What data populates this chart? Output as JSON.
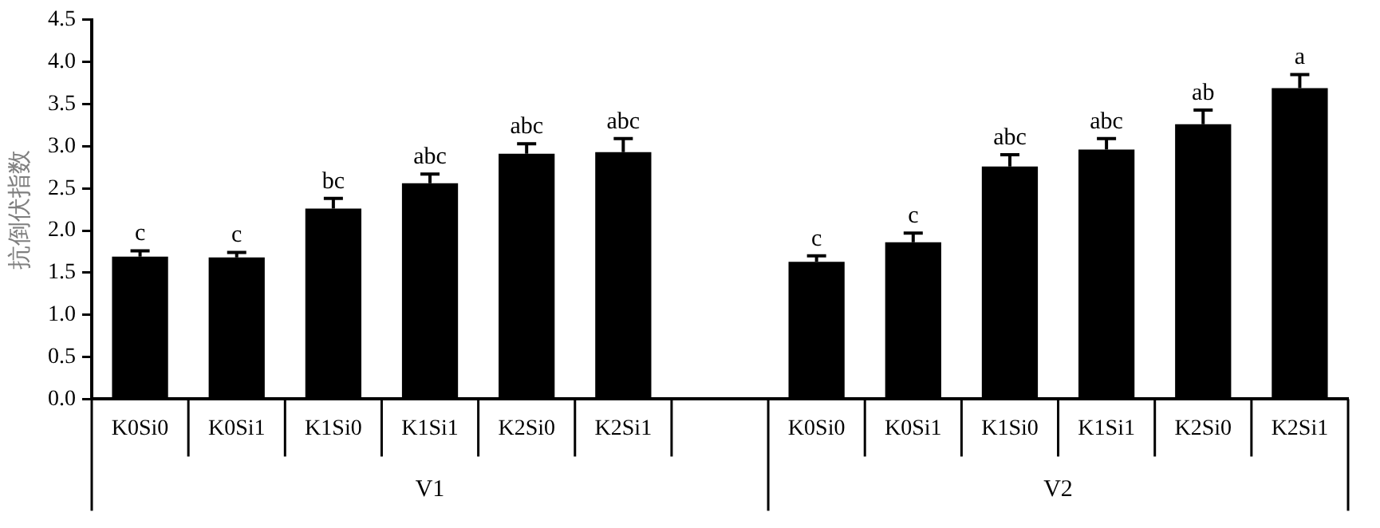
{
  "chart_data": {
    "type": "bar",
    "ylabel": "抗倒伏指数",
    "categories": [
      "K0Si0",
      "K0Si1",
      "K1Si0",
      "K1Si1",
      "K2Si0",
      "K2Si1",
      null,
      "K0Si0",
      "K0Si1",
      "K1Si0",
      "K1Si1",
      "K2Si0",
      "K2Si1"
    ],
    "values": [
      1.69,
      1.68,
      2.26,
      2.56,
      2.91,
      2.93,
      null,
      1.63,
      1.86,
      2.76,
      2.96,
      3.26,
      3.69
    ],
    "errors": [
      0.07,
      0.06,
      0.12,
      0.11,
      0.12,
      0.16,
      null,
      0.07,
      0.11,
      0.14,
      0.13,
      0.17,
      0.16
    ],
    "value_labels": [
      "c",
      "c",
      "bc",
      "abc",
      "abc",
      "abc",
      null,
      "c",
      "c",
      "abc",
      "abc",
      "ab",
      "a"
    ],
    "color": "#000000",
    "ylim": [
      0,
      4.5
    ],
    "yticks": [
      {
        "value": 0,
        "label": "0.0"
      },
      0.5,
      {
        "value": 1,
        "label": "1.0"
      },
      1.5,
      {
        "value": 2,
        "label": "2.0"
      },
      2.5,
      {
        "value": 3,
        "label": "3.0"
      },
      3.5,
      {
        "value": 4,
        "label": "4.0"
      },
      4.5
    ],
    "annotations": [
      "V1",
      "V2"
    ],
    "grid": false,
    "legend": false
  }
}
